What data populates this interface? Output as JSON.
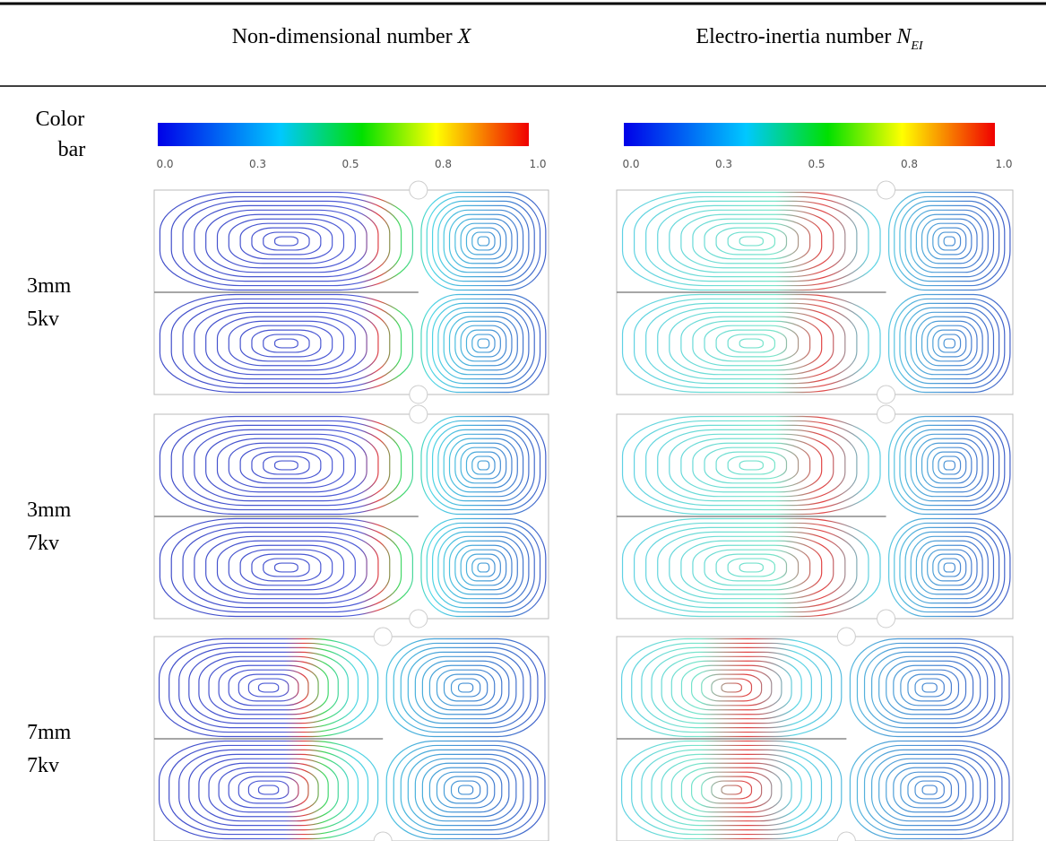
{
  "header": {
    "col1": {
      "text": "Non-dimensional number ",
      "symbol": "X"
    },
    "col2": {
      "text": "Electro-inertia number ",
      "symbol": "N",
      "subscript": "EI"
    }
  },
  "colorbar": {
    "label": [
      "Color",
      "bar"
    ],
    "ticks": [
      "0.0",
      "0.3",
      "0.5",
      "0.8",
      "1.0"
    ]
  },
  "rows": [
    {
      "label": [
        "3mm",
        "5kv"
      ]
    },
    {
      "label": [
        "3mm",
        "7kv"
      ]
    },
    {
      "label": [
        "7mm",
        "7kv"
      ]
    }
  ]
}
